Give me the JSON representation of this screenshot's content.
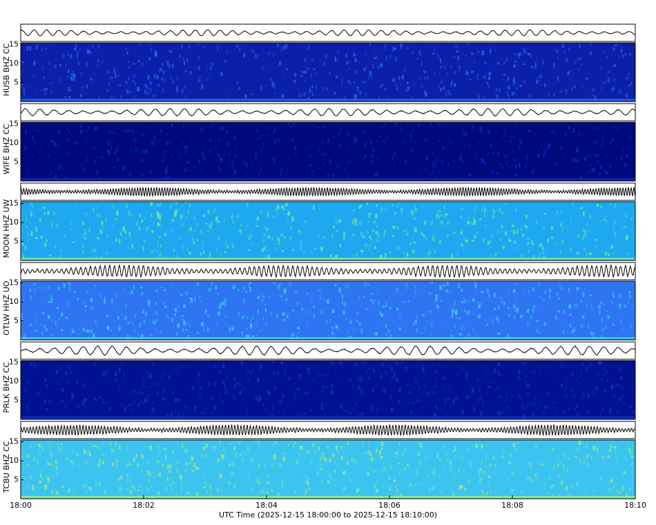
{
  "chart_data": [
    {
      "type": "spectrogram",
      "ylabel": "HUSB BHZ CC",
      "ylim": [
        0,
        15.5
      ],
      "yticks": [
        5,
        10,
        15
      ],
      "color": "#0c1fa8",
      "speckle": "#2a6df0"
    },
    {
      "type": "spectrogram",
      "ylabel": "WIFE BHZ CC",
      "ylim": [
        0,
        15.5
      ],
      "yticks": [
        5,
        10,
        15
      ],
      "color": "#00087e",
      "speckle": "#0d2cc0"
    },
    {
      "type": "spectrogram",
      "ylabel": "MOON HHZ UW",
      "ylim": [
        0,
        15.5
      ],
      "yticks": [
        5,
        10,
        15
      ],
      "color": "#1ea8f0",
      "speckle": "#7ef09a"
    },
    {
      "type": "spectrogram",
      "ylabel": "OTLW HHZ UO",
      "ylim": [
        0,
        15.5
      ],
      "yticks": [
        5,
        10,
        15
      ],
      "color": "#2f74f2",
      "speckle": "#40d8f0"
    },
    {
      "type": "spectrogram",
      "ylabel": "PRLK BHZ CC",
      "ylim": [
        0,
        15.5
      ],
      "yticks": [
        5,
        10,
        15
      ],
      "color": "#001292",
      "speckle": "#0a3ad0"
    },
    {
      "type": "spectrogram",
      "ylabel": "TCBU BHZ CC",
      "ylim": [
        0,
        15.5
      ],
      "yticks": [
        5,
        10,
        15
      ],
      "color": "#3cc4f0",
      "speckle": "#a6f07a",
      "xlim": [
        0,
        10
      ],
      "xticks": [
        {
          "value": 0,
          "label": "18:00"
        },
        {
          "value": 2,
          "label": "18:02"
        },
        {
          "value": 4,
          "label": "18:04"
        },
        {
          "value": 6,
          "label": "18:06"
        },
        {
          "value": 8,
          "label": "18:08"
        },
        {
          "value": 10,
          "label": "18:10"
        }
      ],
      "xlabel": "UTC Time (2025-12-15 18:00:00 to 2025-12-15 18:10:00)"
    }
  ]
}
